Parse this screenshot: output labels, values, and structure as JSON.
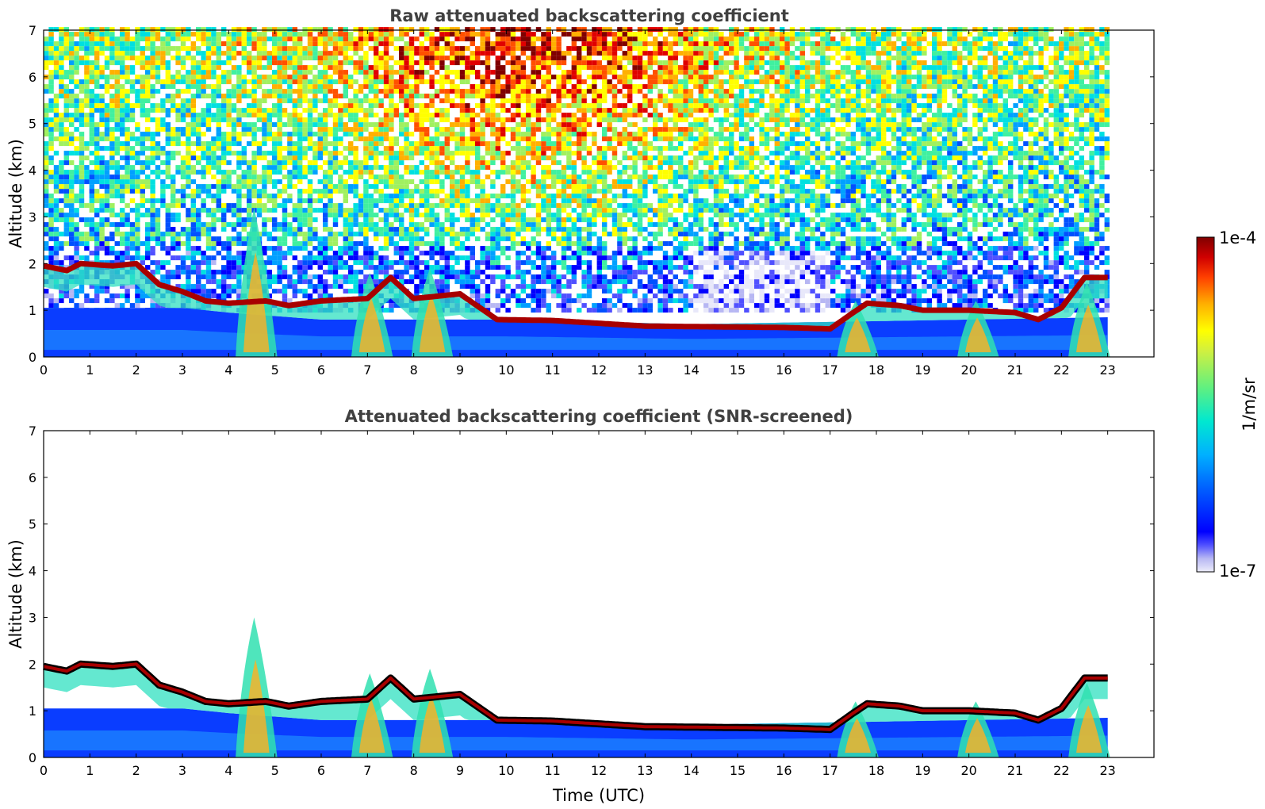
{
  "chart_data": [
    {
      "type": "heatmap",
      "title": "Raw attenuated backscattering coefficient",
      "xlabel": "",
      "ylabel": "Altitude (km)",
      "xlim": [
        0,
        24
      ],
      "ylim": [
        0,
        7
      ],
      "x_ticks": [
        "0",
        "1",
        "2",
        "3",
        "4",
        "5",
        "6",
        "7",
        "8",
        "9",
        "10",
        "11",
        "12",
        "13",
        "14",
        "15",
        "16",
        "17",
        "18",
        "19",
        "20",
        "21",
        "22",
        "23"
      ],
      "y_ticks": [
        "0",
        "1",
        "2",
        "3",
        "4",
        "5",
        "6",
        "7"
      ],
      "data_extent_hours": [
        0,
        23
      ],
      "noise_field": "high-altitude noisy signal, strongest (red/yellow) between 6 and 14 UTC above 4 km",
      "boundary_layer_top_km": [
        [
          0,
          1.05
        ],
        [
          3,
          1.05
        ],
        [
          4,
          0.95
        ],
        [
          6,
          0.8
        ],
        [
          10,
          0.8
        ],
        [
          14,
          0.7
        ],
        [
          17,
          0.75
        ],
        [
          20,
          0.8
        ],
        [
          23,
          0.85
        ]
      ],
      "cloud_layer_km": [
        [
          0,
          1.95
        ],
        [
          0.5,
          1.85
        ],
        [
          0.8,
          2.0
        ],
        [
          1.5,
          1.95
        ],
        [
          2.0,
          2.0
        ],
        [
          2.5,
          1.55
        ],
        [
          3.0,
          1.4
        ],
        [
          3.5,
          1.2
        ],
        [
          4.0,
          1.15
        ],
        [
          4.8,
          1.2
        ],
        [
          5.3,
          1.1
        ],
        [
          6.0,
          1.2
        ],
        [
          7.0,
          1.25
        ],
        [
          7.5,
          1.7
        ],
        [
          8.0,
          1.25
        ],
        [
          9.0,
          1.35
        ],
        [
          9.8,
          0.8
        ],
        [
          11,
          0.78
        ],
        [
          12,
          0.72
        ],
        [
          13,
          0.66
        ],
        [
          14,
          0.65
        ],
        [
          15,
          0.64
        ],
        [
          16,
          0.63
        ],
        [
          17,
          0.6
        ],
        [
          17.5,
          0.95
        ],
        [
          17.8,
          1.15
        ],
        [
          18.5,
          1.1
        ],
        [
          19,
          1.0
        ],
        [
          20,
          1.0
        ],
        [
          21,
          0.95
        ],
        [
          21.5,
          0.8
        ],
        [
          22,
          1.05
        ],
        [
          22.5,
          1.7
        ],
        [
          23,
          1.7
        ]
      ],
      "plumes": [
        {
          "x": 4.6,
          "top_km": 3.2
        },
        {
          "x": 7.1,
          "top_km": 1.8
        },
        {
          "x": 8.4,
          "top_km": 1.9
        },
        {
          "x": 17.6,
          "top_km": 1.2
        },
        {
          "x": 20.2,
          "top_km": 1.2
        },
        {
          "x": 22.6,
          "top_km": 1.6
        }
      ]
    },
    {
      "type": "heatmap",
      "title": "Attenuated backscattering coefficient (SNR-screened)",
      "xlabel": "Time (UTC)",
      "ylabel": "Altitude (km)",
      "xlim": [
        0,
        24
      ],
      "ylim": [
        0,
        7
      ],
      "x_ticks": [
        "0",
        "1",
        "2",
        "3",
        "4",
        "5",
        "6",
        "7",
        "8",
        "9",
        "10",
        "11",
        "12",
        "13",
        "14",
        "15",
        "16",
        "17",
        "18",
        "19",
        "20",
        "21",
        "22",
        "23"
      ],
      "y_ticks": [
        "0",
        "1",
        "2",
        "3",
        "4",
        "5",
        "6",
        "7"
      ],
      "data_extent_hours": [
        0,
        23
      ],
      "noise_field": "screened out (white) above the boundary layer and clouds",
      "boundary_layer_top_km": [
        [
          0,
          1.05
        ],
        [
          3,
          1.05
        ],
        [
          4,
          0.95
        ],
        [
          6,
          0.8
        ],
        [
          10,
          0.8
        ],
        [
          14,
          0.7
        ],
        [
          17,
          0.75
        ],
        [
          20,
          0.8
        ],
        [
          23,
          0.85
        ]
      ],
      "cloud_layer_km": [
        [
          0,
          1.95
        ],
        [
          0.5,
          1.85
        ],
        [
          0.8,
          2.0
        ],
        [
          1.5,
          1.95
        ],
        [
          2.0,
          2.0
        ],
        [
          2.5,
          1.55
        ],
        [
          3.0,
          1.4
        ],
        [
          3.5,
          1.2
        ],
        [
          4.0,
          1.15
        ],
        [
          4.8,
          1.2
        ],
        [
          5.3,
          1.1
        ],
        [
          6.0,
          1.2
        ],
        [
          7.0,
          1.25
        ],
        [
          7.5,
          1.7
        ],
        [
          8.0,
          1.25
        ],
        [
          9.0,
          1.35
        ],
        [
          9.8,
          0.8
        ],
        [
          11,
          0.78
        ],
        [
          12,
          0.72
        ],
        [
          13,
          0.66
        ],
        [
          14,
          0.65
        ],
        [
          15,
          0.64
        ],
        [
          16,
          0.63
        ],
        [
          17,
          0.6
        ],
        [
          17.5,
          0.95
        ],
        [
          17.8,
          1.15
        ],
        [
          18.5,
          1.1
        ],
        [
          19,
          1.0
        ],
        [
          20,
          1.0
        ],
        [
          21,
          0.95
        ],
        [
          21.5,
          0.8
        ],
        [
          22,
          1.05
        ],
        [
          22.5,
          1.7
        ],
        [
          23,
          1.7
        ]
      ],
      "plumes": [
        {
          "x": 4.6,
          "top_km": 3.0
        },
        {
          "x": 7.1,
          "top_km": 1.8
        },
        {
          "x": 8.4,
          "top_km": 1.9
        },
        {
          "x": 17.6,
          "top_km": 1.2
        },
        {
          "x": 20.2,
          "top_km": 1.2
        },
        {
          "x": 22.6,
          "top_km": 1.6
        }
      ]
    }
  ],
  "colorbar": {
    "label": "1/m/sr",
    "max_label": "1e-4",
    "min_label": "1e-7",
    "scale": "log",
    "colormap": [
      "#e8e8fa",
      "#b7b7f3",
      "#5050ff",
      "#0000ff",
      "#0050ff",
      "#00a0ff",
      "#00e0e0",
      "#40f0a0",
      "#a0f060",
      "#ffff00",
      "#ffb000",
      "#ff5000",
      "#e00000",
      "#800000"
    ]
  }
}
